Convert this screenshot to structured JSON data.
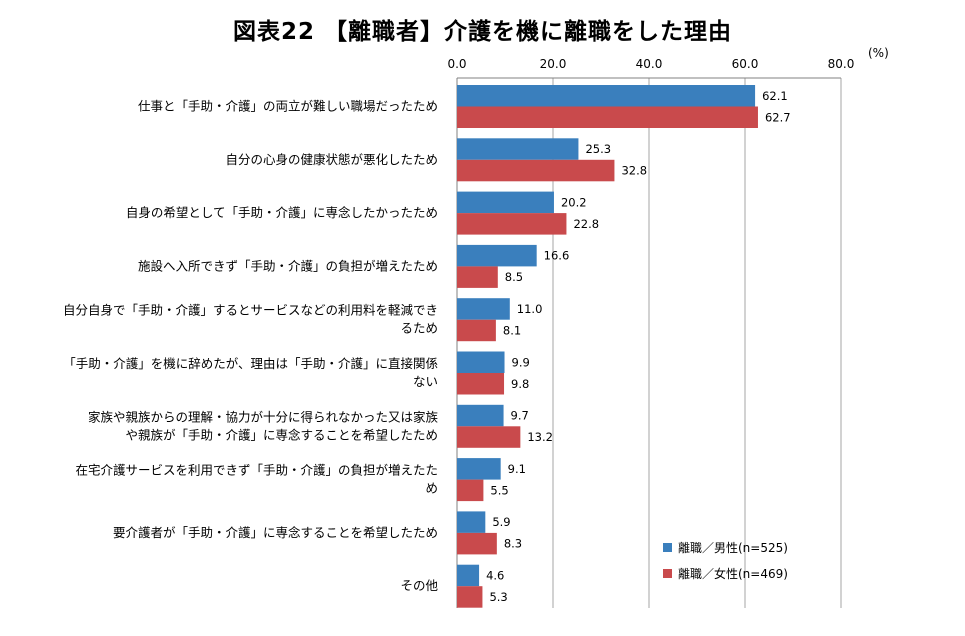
{
  "chart_data": {
    "type": "bar",
    "orientation": "horizontal",
    "title": "図表22 【離職者】介護を機に離職をした理由",
    "unit_label": "(%)",
    "xlim": [
      0,
      80
    ],
    "xticks": [
      "0.0",
      "20.0",
      "40.0",
      "60.0",
      "80.0"
    ],
    "xtick_values": [
      0,
      20,
      40,
      60,
      80
    ],
    "categories": [
      [
        "仕事と「手助・介護」の両立が難しい職場だったため"
      ],
      [
        "自分の心身の健康状態が悪化したため"
      ],
      [
        "自身の希望として「手助・介護」に専念したかったため"
      ],
      [
        "施設へ入所できず「手助・介護」の負担が増えたため"
      ],
      [
        "自分自身で「手助・介護」するとサービスなどの利用料を軽減でき",
        "るため"
      ],
      [
        "「手助・介護」を機に辞めたが、理由は「手助・介護」に直接関係",
        "ない"
      ],
      [
        "家族や親族からの理解・協力が十分に得られなかった又は家族",
        "や親族が「手助・介護」に専念することを希望したため"
      ],
      [
        "在宅介護サービスを利用できず「手助・介護」の負担が増えたた",
        "め"
      ],
      [
        "要介護者が「手助・介護」に専念することを希望したため"
      ],
      [
        "その他"
      ]
    ],
    "series": [
      {
        "name": "離職／男性(n=525)",
        "color": "#3a7fbd",
        "values": [
          62.1,
          25.3,
          20.2,
          16.6,
          11.0,
          9.9,
          9.7,
          9.1,
          5.9,
          4.6
        ],
        "labels": [
          "62.1",
          "25.3",
          "20.2",
          "16.6",
          "11.0",
          "9.9",
          "9.7",
          "9.1",
          "5.9",
          "4.6"
        ]
      },
      {
        "name": "離職／女性(n=469)",
        "color": "#c94a4c",
        "values": [
          62.7,
          32.8,
          22.8,
          8.5,
          8.1,
          9.8,
          13.2,
          5.5,
          8.3,
          5.3
        ],
        "labels": [
          "62.7",
          "32.8",
          "22.8",
          "8.5",
          "8.1",
          "9.8",
          "13.2",
          "5.5",
          "8.3",
          "5.3"
        ]
      }
    ],
    "legend_position": "bottom-right",
    "grid": "vertical"
  }
}
